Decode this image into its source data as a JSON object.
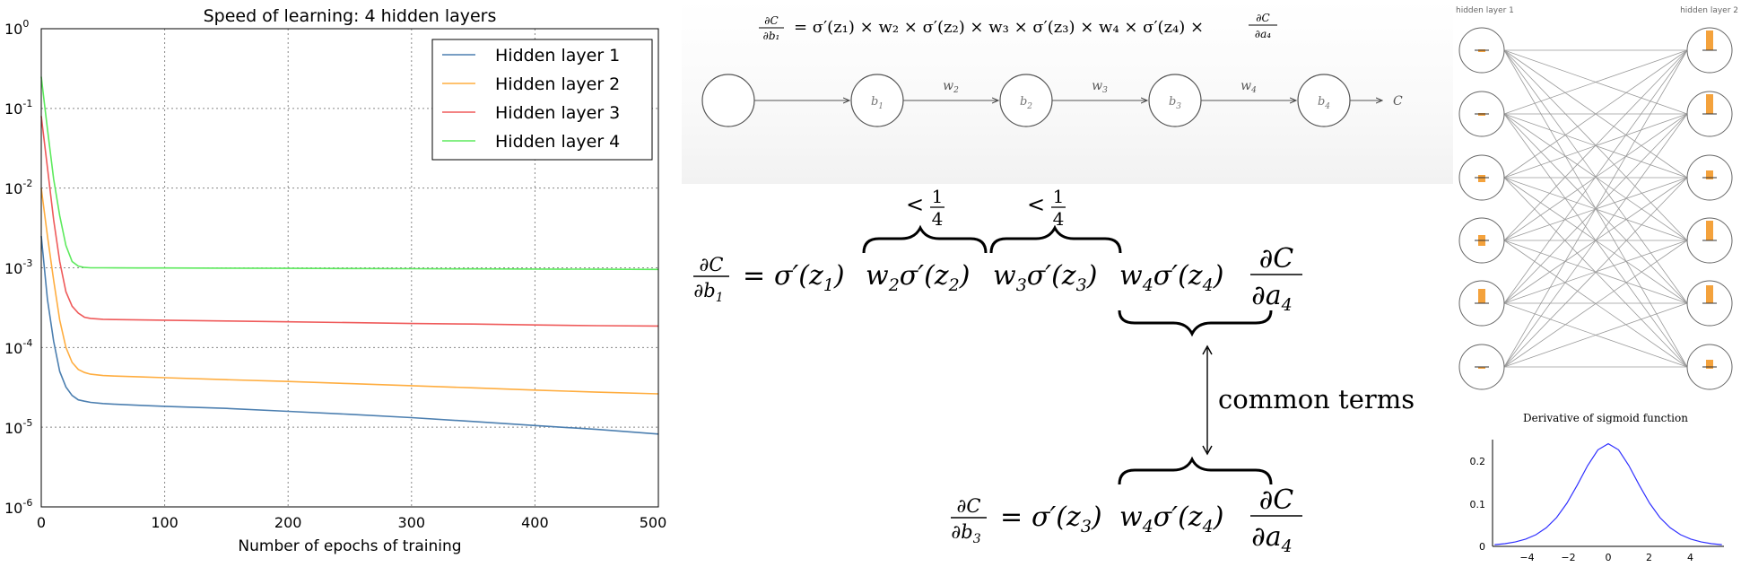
{
  "speed_chart": {
    "title": "Speed of learning: 4 hidden layers",
    "xlabel": "Number of epochs of training",
    "x_ticks": [
      "0",
      "100",
      "200",
      "300",
      "400",
      "500"
    ],
    "y_tick_bases": [
      "10",
      "10",
      "10",
      "10",
      "10",
      "10",
      "10"
    ],
    "y_tick_exps": [
      "0",
      "-1",
      "-2",
      "-3",
      "-4",
      "-5",
      "-6"
    ],
    "legend": [
      "Hidden layer 1",
      "Hidden layer 2",
      "Hidden layer 3",
      "Hidden layer 4"
    ]
  },
  "sigmoid_chart": {
    "title": "Derivative of sigmoid function",
    "x_ticks": [
      "−4",
      "−2",
      "0",
      "2",
      "4"
    ],
    "y_ticks": [
      "0",
      "0.1",
      "0.2"
    ]
  },
  "network_diagram": {
    "layer1_label": "hidden layer 1",
    "layer2_label": "hidden layer 2",
    "bar_color": "#f4a23c"
  },
  "chain_diagram": {
    "nodes": [
      "",
      "b",
      "b",
      "b",
      "b"
    ],
    "node_subs": [
      "",
      "1",
      "2",
      "3",
      "4"
    ],
    "weights": [
      "w",
      "w",
      "w"
    ],
    "weight_subs": [
      "2",
      "3",
      "4"
    ],
    "output_label": "C"
  },
  "equations": {
    "top_formula": "∂C/∂b₁ = σ′(z₁) × w₂ × σ′(z₂) × w₃ × σ′(z₃) × w₄ × σ′(z₄) × ∂C/∂a₄",
    "bound_lt": "<",
    "bound_num": "1",
    "bound_den": "4",
    "common_terms": "common terms",
    "eq1": {
      "frac_num": "∂C",
      "frac_den": "∂b",
      "frac_den_sub": "1",
      "equals": "=",
      "term1": "σ′(z",
      "term1_sub": "1",
      "term1_close": ")",
      "group1": "w",
      "group1_sub": "2",
      "group1_rest": "σ′(z",
      "group1_sub2": "2",
      "group1_close": ")",
      "group2": "w",
      "group2_sub": "3",
      "group2_rest": "σ′(z",
      "group2_sub2": "3",
      "group2_close": ")",
      "group3": "w",
      "group3_sub": "4",
      "group3_rest": "σ′(z",
      "group3_sub2": "4",
      "group3_close": ")",
      "tail_num": "∂C",
      "tail_den": "∂a",
      "tail_den_sub": "4"
    },
    "eq2": {
      "frac_num": "∂C",
      "frac_den": "∂b",
      "frac_den_sub": "3",
      "equals": "=",
      "term1": "σ′(z",
      "term1_sub": "3",
      "term1_close": ")",
      "group3": "w",
      "group3_sub": "4",
      "group3_rest": "σ′(z",
      "group3_sub2": "4",
      "group3_close": ")",
      "tail_num": "∂C",
      "tail_den": "∂a",
      "tail_den_sub": "4"
    }
  },
  "chart_data": [
    {
      "type": "line",
      "title": "Speed of learning: 4 hidden layers",
      "xlabel": "Number of epochs of training",
      "ylabel": "",
      "xlim": [
        0,
        500
      ],
      "ylim": [
        1e-06,
        1
      ],
      "y_scale": "log",
      "grid": true,
      "legend_position": "top-right",
      "x": [
        0,
        5,
        10,
        15,
        20,
        25,
        30,
        35,
        40,
        50,
        60,
        80,
        100,
        150,
        200,
        250,
        300,
        350,
        400,
        450,
        500
      ],
      "series": [
        {
          "name": "Hidden layer 1",
          "color": "#4c7fb0",
          "values": [
            0.0025,
            0.0004,
            0.00012,
            5e-05,
            3.2e-05,
            2.5e-05,
            2.2e-05,
            2.12e-05,
            2.05e-05,
            1.98e-05,
            1.94e-05,
            1.88e-05,
            1.83e-05,
            1.72e-05,
            1.58e-05,
            1.45e-05,
            1.32e-05,
            1.18e-05,
            1.05e-05,
            9.4e-06,
            8.2e-06
          ]
        },
        {
          "name": "Hidden layer 2",
          "color": "#ffad3f",
          "values": [
            0.01,
            0.0025,
            0.0007,
            0.00022,
            0.0001,
            6.5e-05,
            5.3e-05,
            4.85e-05,
            4.62e-05,
            4.45e-05,
            4.38e-05,
            4.28e-05,
            4.18e-05,
            3.95e-05,
            3.75e-05,
            3.52e-05,
            3.32e-05,
            3.12e-05,
            2.92e-05,
            2.75e-05,
            2.62e-05
          ]
        },
        {
          "name": "Hidden layer 3",
          "color": "#ef5a5a",
          "values": [
            0.08,
            0.018,
            0.004,
            0.0012,
            0.0005,
            0.00033,
            0.00027,
            0.00024,
            0.000232,
            0.000226,
            0.000224,
            0.000222,
            0.00022,
            0.000215,
            0.00021,
            0.000205,
            0.0002,
            0.000197,
            0.000192,
            0.000188,
            0.000186
          ]
        },
        {
          "name": "Hidden layer 4",
          "color": "#5dea5d",
          "values": [
            0.25,
            0.055,
            0.013,
            0.0045,
            0.0019,
            0.0012,
            0.00105,
            0.00101,
            0.001,
            0.001,
            0.000998,
            0.000996,
            0.000995,
            0.00099,
            0.000985,
            0.00098,
            0.000975,
            0.00097,
            0.000965,
            0.00096,
            0.000955
          ]
        }
      ]
    },
    {
      "type": "line",
      "title": "Derivative of sigmoid function",
      "xlabel": "",
      "ylabel": "",
      "xlim": [
        -5.6,
        5.6
      ],
      "ylim": [
        0,
        0.25
      ],
      "grid": false,
      "x": [
        -5.5,
        -5,
        -4.5,
        -4,
        -3.5,
        -3,
        -2.5,
        -2,
        -1.5,
        -1,
        -0.5,
        0,
        0.5,
        1,
        1.5,
        2,
        2.5,
        3,
        3.5,
        4,
        4.5,
        5,
        5.5
      ],
      "series": [
        {
          "color": "#3030ff",
          "values": [
            0.0041,
            0.0066,
            0.0108,
            0.0177,
            0.0285,
            0.0452,
            0.0701,
            0.105,
            0.1491,
            0.1966,
            0.235,
            0.25,
            0.235,
            0.1966,
            0.1491,
            0.105,
            0.0701,
            0.0452,
            0.0285,
            0.0177,
            0.0108,
            0.0066,
            0.0041
          ]
        }
      ]
    }
  ]
}
